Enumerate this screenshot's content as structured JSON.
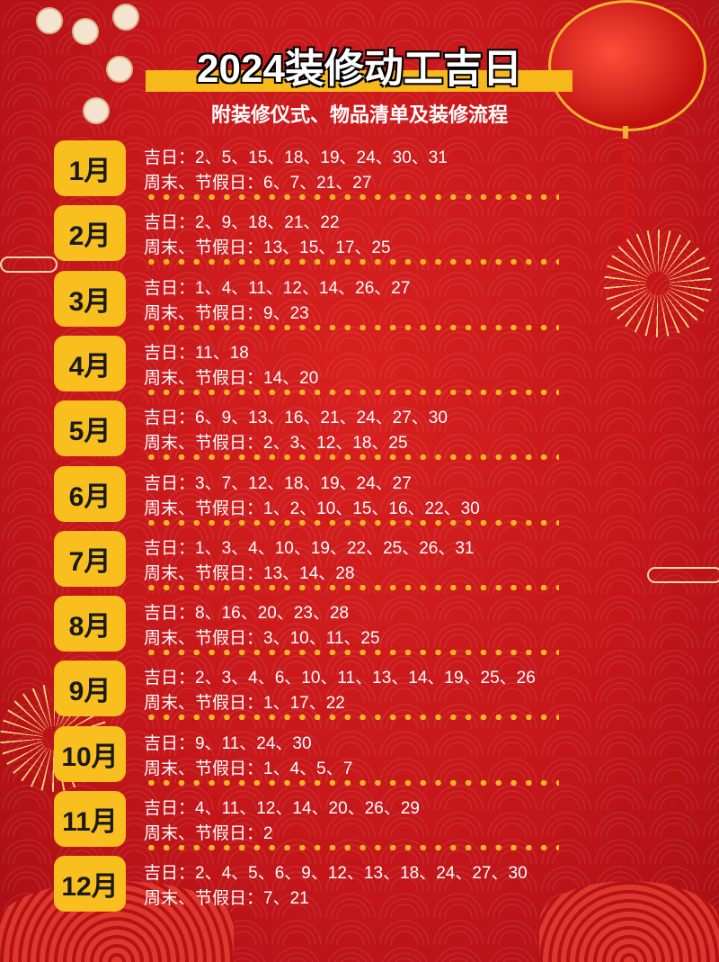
{
  "header": {
    "title": "2024装修动工吉日",
    "subtitle": "附装修仪式、物品清单及装修流程"
  },
  "colors": {
    "background": "#c4161a",
    "badge": "#f8bf1e",
    "dots": "#f8b622",
    "text": "#ffffff"
  },
  "months": [
    {
      "label": "1月",
      "lucky": "吉日：2、5、15、18、19、24、30、31",
      "holidays": "周末、节假日：6、7、21、27"
    },
    {
      "label": "2月",
      "lucky": "吉日：2、9、18、21、22",
      "holidays": "周末、节假日：13、15、17、25"
    },
    {
      "label": "3月",
      "lucky": "吉日：1、4、11、12、14、26、27",
      "holidays": "周末、节假日：9、23"
    },
    {
      "label": "4月",
      "lucky": "吉日：11、18",
      "holidays": "周末、节假日：14、20"
    },
    {
      "label": "5月",
      "lucky": "吉日：6、9、13、16、21、24、27、30",
      "holidays": "周末、节假日：2、3、12、18、25"
    },
    {
      "label": "6月",
      "lucky": "吉日：3、7、12、18、19、24、27",
      "holidays": "周末、节假日：1、2、10、15、16、22、30"
    },
    {
      "label": "7月",
      "lucky": "吉日：1、3、4、10、19、22、25、26、31",
      "holidays": "周末、节假日：13、14、28"
    },
    {
      "label": "8月",
      "lucky": "吉日：8、16、20、23、28",
      "holidays": "周末、节假日：3、10、11、25"
    },
    {
      "label": "9月",
      "lucky": "吉日：2、3、4、6、10、11、13、14、19、25、26",
      "holidays": "周末、节假日：1、17、22"
    },
    {
      "label": "10月",
      "lucky": "吉日：9、11、24、30",
      "holidays": "周末、节假日：1、4、5、7"
    },
    {
      "label": "11月",
      "lucky": "吉日：4、11、12、14、20、26、29",
      "holidays": "周末、节假日：2"
    },
    {
      "label": "12月",
      "lucky": "吉日：2、4、5、6、9、12、13、18、24、27、30",
      "holidays": "周末、节假日：7、21"
    }
  ]
}
